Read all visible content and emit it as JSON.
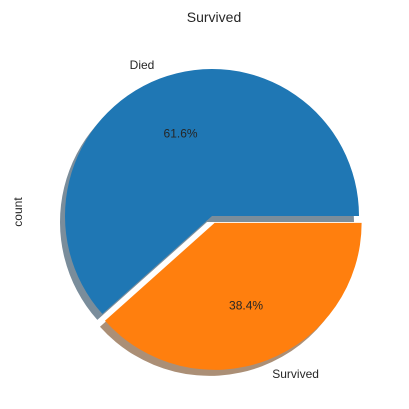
{
  "chart_data": {
    "type": "pie",
    "title": "Survived",
    "ylabel": "count",
    "labels": [
      "Died",
      "Survived"
    ],
    "values": [
      61.6,
      38.4
    ],
    "percent_labels": [
      "61.6%",
      "38.4%"
    ],
    "explode": [
      0,
      0.05
    ],
    "shadow": true,
    "start_angle": 0,
    "colors": [
      "#1f77b4",
      "#ff7f0e"
    ]
  }
}
